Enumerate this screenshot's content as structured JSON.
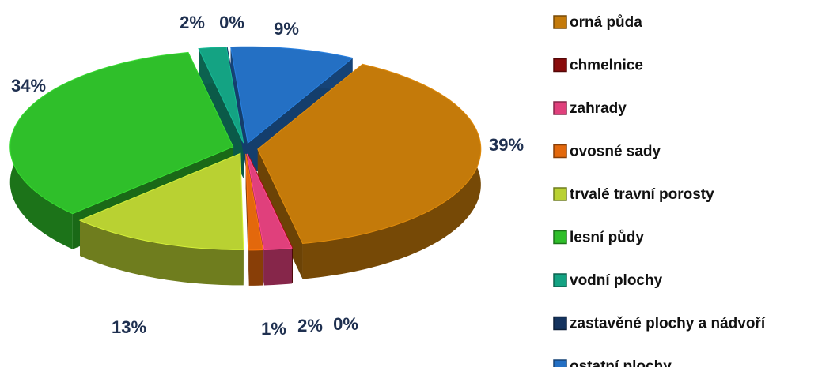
{
  "chart_data": {
    "type": "pie",
    "categories": [
      "orná půda",
      "chmelnice",
      "zahrady",
      "ovosné sady",
      "trvalé travní porosty",
      "lesní půdy",
      "vodní plochy",
      "zastavěné plochy a nádvoří",
      "ostatní plochy"
    ],
    "values": [
      39,
      0,
      2,
      1,
      13,
      34,
      2,
      0,
      9
    ],
    "value_labels": [
      "39%",
      "0%",
      "2%",
      "1%",
      "13%",
      "34%",
      "2%",
      "0%",
      "9%"
    ],
    "colors": [
      "#c47a0a",
      "#8a0c0c",
      "#e0407c",
      "#e3680c",
      "#b9d132",
      "#2fbf2a",
      "#14a383",
      "#14335e",
      "#2470c4"
    ],
    "legend": "right"
  }
}
